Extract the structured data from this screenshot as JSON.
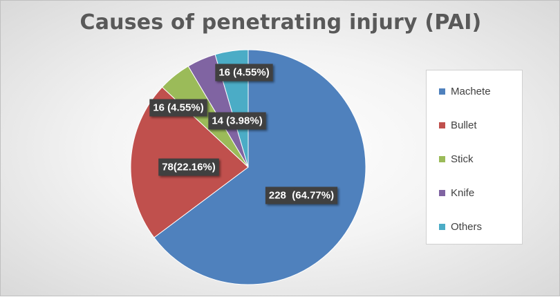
{
  "chart_data": {
    "type": "pie",
    "title": "Causes of penetrating injury (PAI)",
    "slices": [
      {
        "name": "Machete",
        "value": 228,
        "percent": 64.77,
        "label": "228  (64.77%)",
        "color": "#4f81bd"
      },
      {
        "name": "Bullet",
        "value": 78,
        "percent": 22.16,
        "label": "78(22.16%)",
        "color": "#c0504d"
      },
      {
        "name": "Stick",
        "value": 16,
        "percent": 4.55,
        "label": "16 (4.55%)",
        "color": "#9bbb59"
      },
      {
        "name": "Knife",
        "value": 14,
        "percent": 3.98,
        "label": "14 (3.98%)",
        "color": "#8064a2"
      },
      {
        "name": "Others",
        "value": 16,
        "percent": 4.55,
        "label": "16 (4.55%)",
        "color": "#4bacc6"
      }
    ],
    "legend_position": "right",
    "start_angle": "top (12 o'clock), clockwise"
  }
}
